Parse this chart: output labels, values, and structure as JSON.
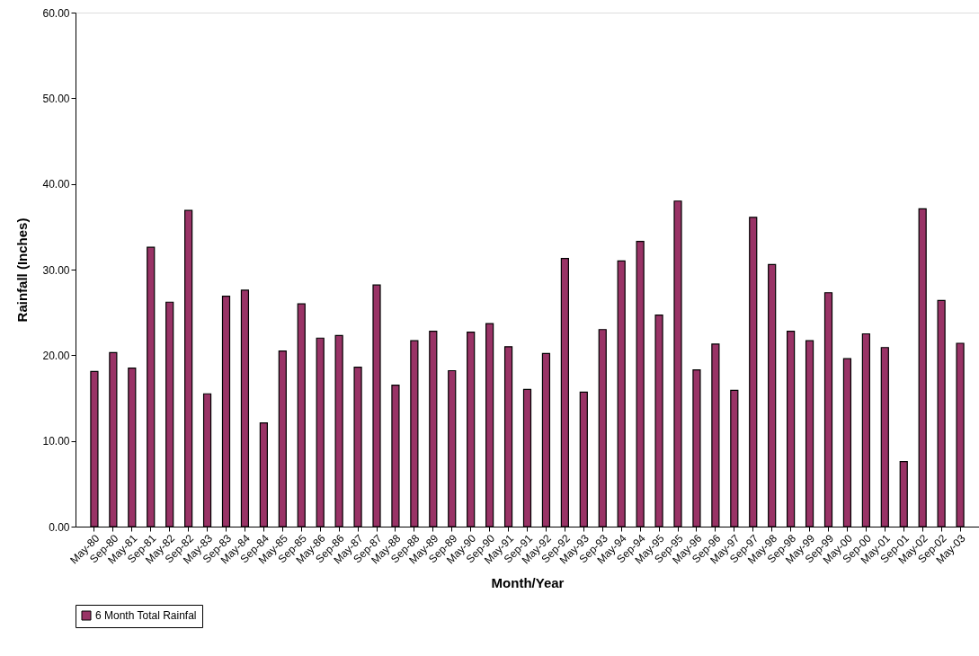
{
  "chart_data": {
    "type": "bar",
    "xlabel": "Month/Year",
    "ylabel": "Rainfall (Inches)",
    "categories": [
      "May-80",
      "Sep-80",
      "May-81",
      "Sep-81",
      "May-82",
      "Sep-82",
      "May-83",
      "Sep-83",
      "May-84",
      "Sep-84",
      "May-85",
      "Sep-85",
      "May-86",
      "Sep-86",
      "May-87",
      "Sep-87",
      "May-88",
      "Sep-88",
      "May-89",
      "Sep-89",
      "May-90",
      "Sep-90",
      "May-91",
      "Sep-91",
      "May-92",
      "Sep-92",
      "May-93",
      "Sep-93",
      "May-94",
      "Sep-94",
      "May-95",
      "Sep-95",
      "May-96",
      "Sep-96",
      "May-97",
      "Sep-97",
      "May-98",
      "Sep-98",
      "May-99",
      "Sep-99",
      "May-00",
      "Sep-00",
      "May-01",
      "Sep-01",
      "May-02",
      "Sep-02",
      "May-03"
    ],
    "series": [
      {
        "name": "6 Month Total Rainfal",
        "color": "#993366",
        "values": [
          18.1,
          20.3,
          18.5,
          32.6,
          26.2,
          36.9,
          15.5,
          26.9,
          27.6,
          12.1,
          20.5,
          26.0,
          22.0,
          22.3,
          18.6,
          28.2,
          16.5,
          21.7,
          22.8,
          18.2,
          22.7,
          23.7,
          21.0,
          16.0,
          20.2,
          31.3,
          15.7,
          23.0,
          31.0,
          33.3,
          24.7,
          38.0,
          18.3,
          21.3,
          15.9,
          36.1,
          30.6,
          22.8,
          21.7,
          27.3,
          19.6,
          22.5,
          20.9,
          7.6,
          37.1,
          26.4,
          21.4
        ]
      }
    ],
    "ylim": [
      0,
      60
    ],
    "yticks": [
      {
        "value": 0,
        "label": "0.00"
      },
      {
        "value": 10,
        "label": "10.00"
      },
      {
        "value": 20,
        "label": "20.00"
      },
      {
        "value": 30,
        "label": "30.00"
      },
      {
        "value": 40,
        "label": "40.00"
      },
      {
        "value": 50,
        "label": "50.00"
      },
      {
        "value": 60,
        "label": "60.00"
      }
    ],
    "grid": false,
    "legend": "bottom"
  }
}
